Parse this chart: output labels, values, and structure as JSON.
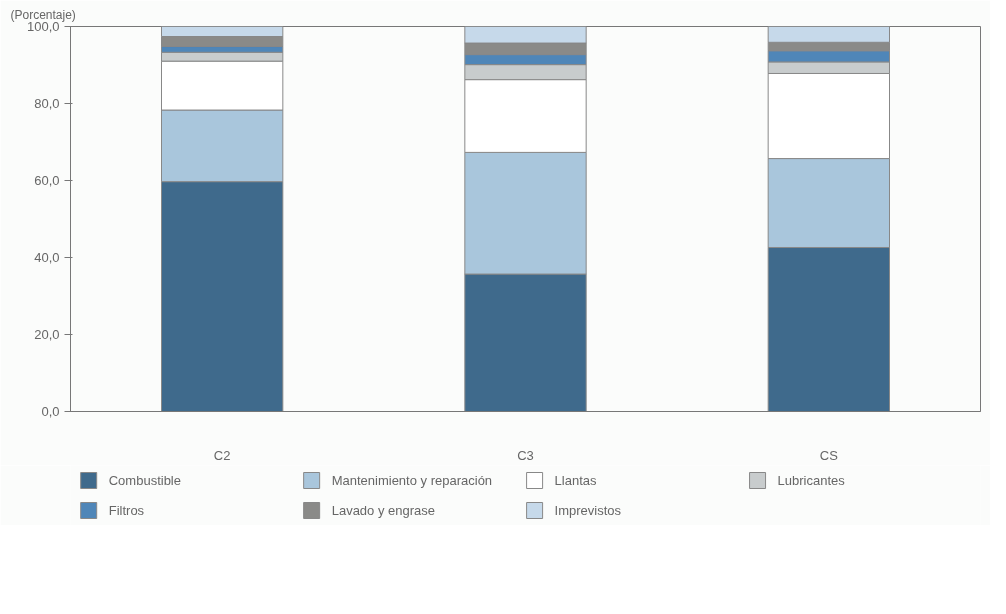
{
  "chart_data": {
    "type": "bar",
    "stacked": true,
    "ylabel": "(Porcentaje)",
    "categories": [
      "C2",
      "C3",
      "CS"
    ],
    "series": [
      {
        "name": "Combustible",
        "color": "#3f6a8c",
        "values": [
          59.7,
          35.7,
          42.6
        ]
      },
      {
        "name": "Mantenimiento y reparación",
        "color": "#a9c6dc",
        "values": [
          18.6,
          31.6,
          23.1
        ]
      },
      {
        "name": "Llantas",
        "color": "#ffffff",
        "values": [
          12.7,
          18.9,
          22.1
        ]
      },
      {
        "name": "Lubricantes",
        "color": "#c8cccd",
        "values": [
          2.3,
          3.9,
          3.0
        ]
      },
      {
        "name": "Filtros",
        "color": "#4f86b8",
        "values": [
          1.5,
          2.6,
          2.9
        ]
      },
      {
        "name": "Lavado y engrase",
        "color": "#8a8a88",
        "values": [
          2.6,
          3.0,
          2.2
        ]
      },
      {
        "name": "Imprevistos",
        "color": "#c6d9ea",
        "values": [
          2.6,
          4.3,
          4.1
        ]
      }
    ],
    "ylim": [
      0,
      100
    ],
    "yticks": [
      {
        "value": 0,
        "label": "0,0"
      },
      {
        "value": 20,
        "label": "20,0"
      },
      {
        "value": 40,
        "label": "40,0"
      },
      {
        "value": 60,
        "label": "60,0"
      },
      {
        "value": 80,
        "label": "80,0"
      },
      {
        "value": 100,
        "label": "100,0"
      }
    ],
    "grid": false,
    "legend": "bottom"
  }
}
